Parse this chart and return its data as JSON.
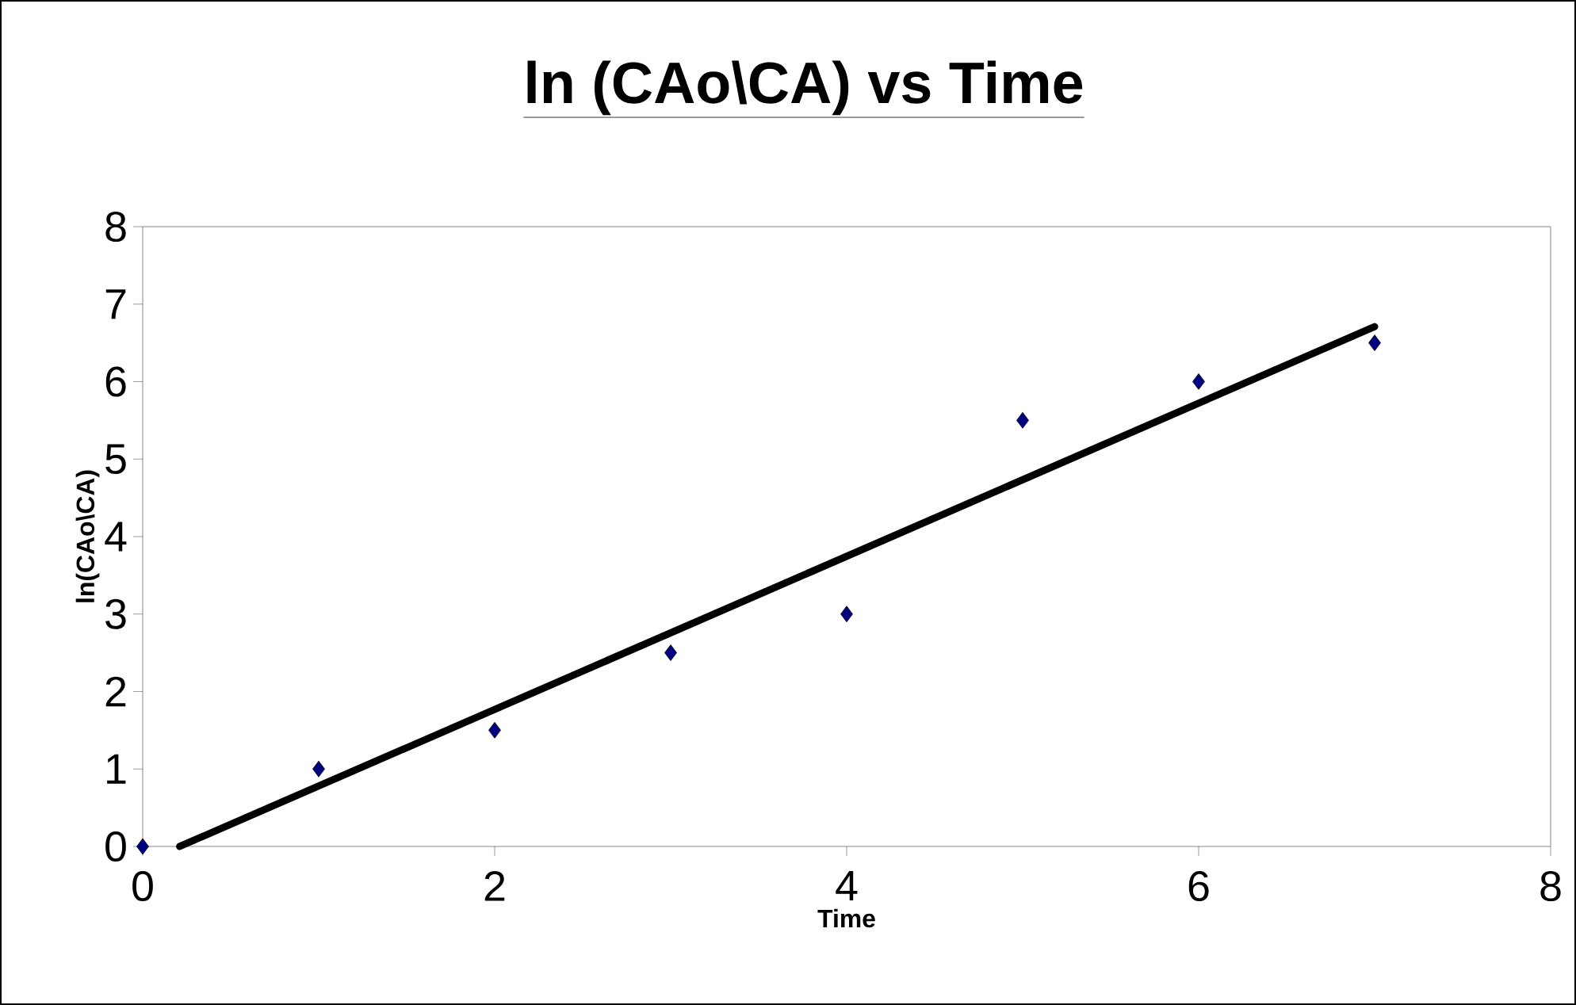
{
  "chart_data": {
    "type": "scatter",
    "title": "ln (CAo\\CA)  vs  Time",
    "xlabel": "Time",
    "ylabel": "ln(CAo\\CA)",
    "xlim": [
      0,
      8
    ],
    "ylim": [
      0,
      8
    ],
    "xticks": [
      0,
      2,
      4,
      6,
      8
    ],
    "yticks": [
      0,
      1,
      2,
      3,
      4,
      5,
      6,
      7,
      8
    ],
    "series": [
      {
        "color": "#000080",
        "marker": "diamond",
        "x": [
          0,
          1,
          2,
          3,
          4,
          5,
          6,
          7
        ],
        "values": [
          0,
          1,
          1.5,
          2.5,
          3,
          5.5,
          6,
          6.5
        ]
      },
      {
        "type": "line",
        "color": "#000000",
        "marker": "none",
        "line_style": "solid",
        "x": [
          0.21,
          7
        ],
        "values": [
          0,
          6.71
        ]
      }
    ]
  }
}
